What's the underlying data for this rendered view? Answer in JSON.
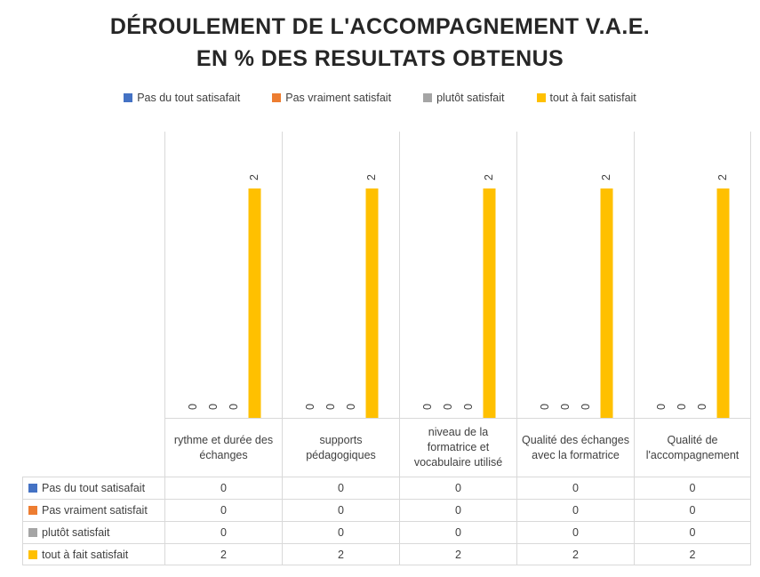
{
  "title": {
    "line1": "DÉROULEMENT DE L'ACCOMPAGNEMENT V.A.E.",
    "line2": "EN % DES RESULTATS OBTENUS"
  },
  "colors": {
    "border": "#D9D9D9",
    "text": "#404040",
    "title_text": "#262626"
  },
  "chart_data": {
    "type": "bar",
    "title": "DÉROULEMENT DE L'ACCOMPAGNEMENT V.A.E. EN % DES RESULTATS OBTENUS",
    "categories": [
      "rythme et durée des échanges",
      "supports pédagogiques",
      "niveau de la formatrice et vocabulaire utilisé",
      "Qualité des échanges avec la formatrice",
      "Qualité de l'accompagnement"
    ],
    "series": [
      {
        "name": "Pas du tout satisafait",
        "color": "#4472C4",
        "values": [
          0,
          0,
          0,
          0,
          0
        ]
      },
      {
        "name": "Pas vraiment satisfait",
        "color": "#ED7D31",
        "values": [
          0,
          0,
          0,
          0,
          0
        ]
      },
      {
        "name": "plutôt satisfait",
        "color": "#A5A5A5",
        "values": [
          0,
          0,
          0,
          0,
          0
        ]
      },
      {
        "name": "tout à fait satisfait",
        "color": "#FFC000",
        "values": [
          2,
          2,
          2,
          2,
          2
        ]
      }
    ],
    "ylim": [
      0,
      2.5
    ],
    "xlabel": "",
    "ylabel": "",
    "legend_position": "top",
    "data_labels": true,
    "data_labels_rotated": true,
    "data_table_with_legend_keys": true,
    "grid": false
  }
}
